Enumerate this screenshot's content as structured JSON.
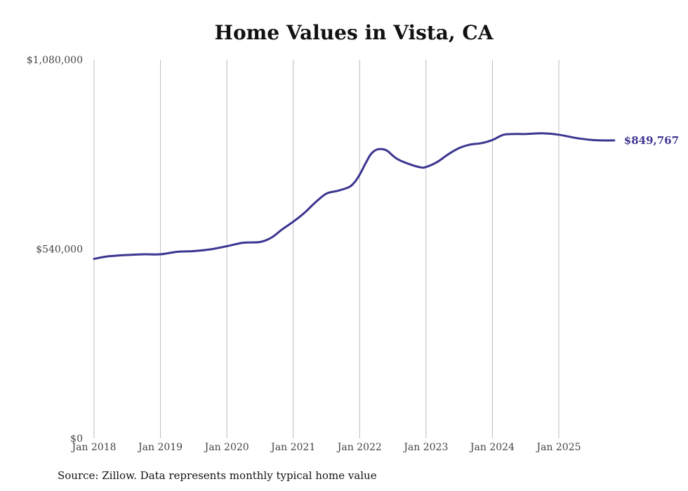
{
  "chart_data": {
    "type": "line",
    "title": "Home Values in Vista, CA",
    "xlabel": "",
    "ylabel": "",
    "ylim": [
      0,
      1080000
    ],
    "y_ticks": [
      0,
      540000,
      1080000
    ],
    "y_tick_labels": [
      "$0",
      "$540,000",
      "$1,080,000"
    ],
    "x_ticks": [
      2018.0,
      2019.0,
      2020.0,
      2021.0,
      2022.0,
      2023.0,
      2024.0,
      2025.0
    ],
    "x_tick_labels": [
      "Jan 2018",
      "Jan 2019",
      "Jan 2020",
      "Jan 2021",
      "Jan 2022",
      "Jan 2023",
      "Jan 2024",
      "Jan 2025"
    ],
    "xlim": [
      2018.0,
      2025.833
    ],
    "grid": "vertical",
    "series": [
      {
        "name": "Typical home value",
        "color": "#3b3590",
        "x": [
          2018.0,
          2018.167,
          2018.333,
          2018.5,
          2018.75,
          2019.0,
          2019.25,
          2019.5,
          2019.75,
          2020.0,
          2020.25,
          2020.5,
          2020.667,
          2020.833,
          2021.0,
          2021.167,
          2021.333,
          2021.5,
          2021.667,
          2021.833,
          2021.917,
          2022.0,
          2022.083,
          2022.167,
          2022.25,
          2022.333,
          2022.417,
          2022.5,
          2022.583,
          2022.75,
          2022.917,
          2023.0,
          2023.167,
          2023.333,
          2023.5,
          2023.667,
          2023.833,
          2024.0,
          2024.167,
          2024.333,
          2024.5,
          2024.75,
          2025.0,
          2025.25,
          2025.5,
          2025.667,
          2025.833
        ],
        "values": [
          512000,
          518000,
          521000,
          523000,
          525000,
          525000,
          532000,
          534000,
          539000,
          548000,
          558000,
          560000,
          572000,
          596000,
          618000,
          643000,
          673000,
          698000,
          706000,
          716000,
          729000,
          752000,
          782000,
          810000,
          823000,
          825000,
          820000,
          806000,
          795000,
          782000,
          773000,
          774000,
          788000,
          810000,
          828000,
          838000,
          842000,
          851000,
          866000,
          868000,
          868000,
          870000,
          866000,
          857000,
          851000,
          849767,
          849767
        ]
      }
    ],
    "end_label": "$849,767",
    "annotations": [
      "$849,767"
    ]
  },
  "source_note": "Source: Zillow. Data represents monthly typical home value"
}
